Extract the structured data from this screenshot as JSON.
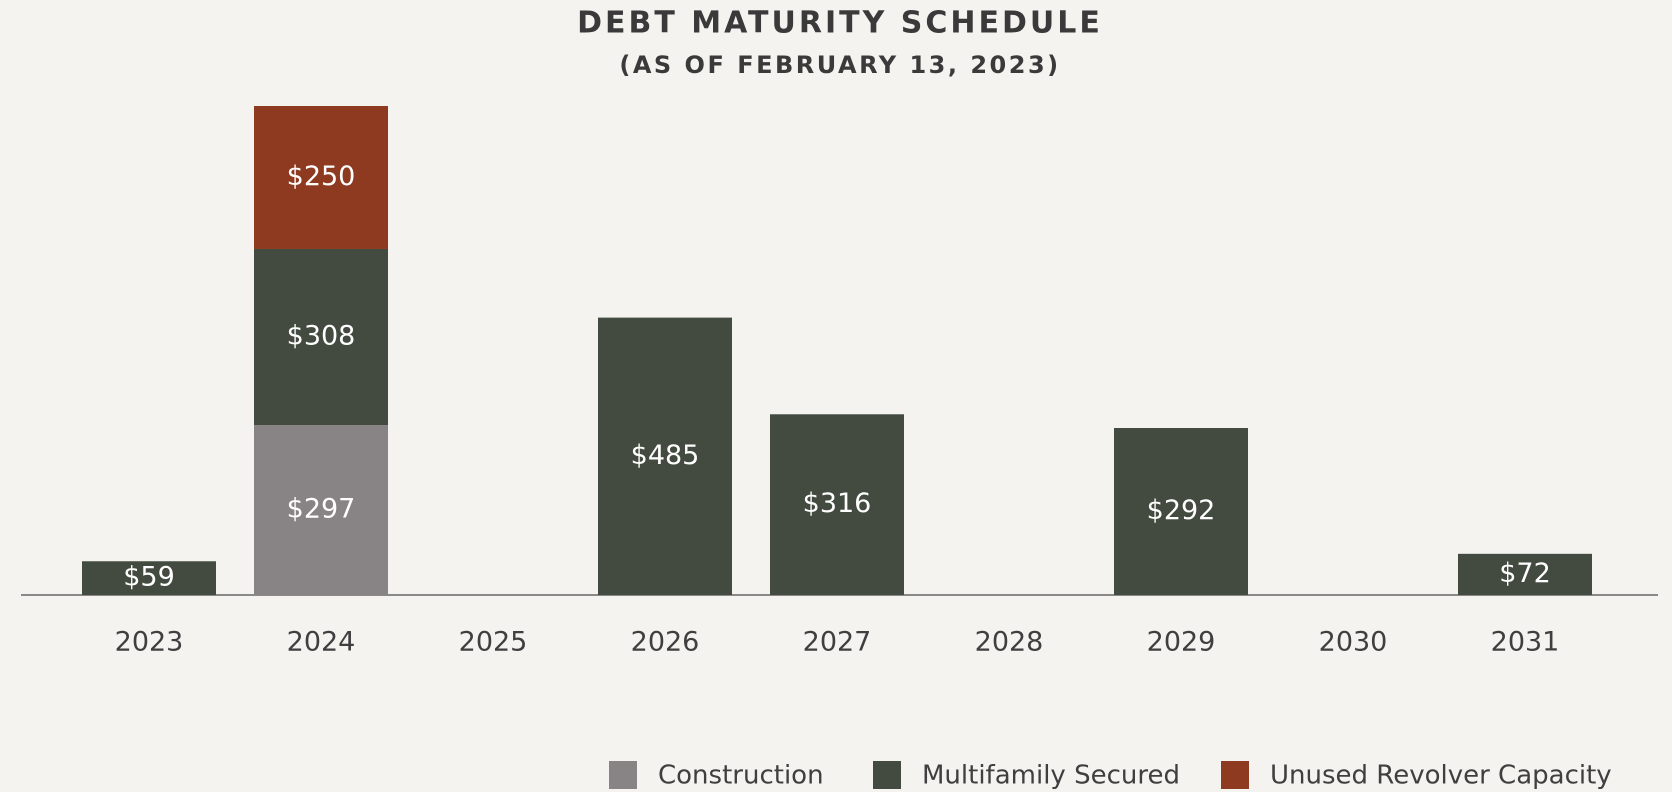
{
  "chart_data": {
    "type": "stacked_bar",
    "title": "DEBT MATURITY SCHEDULE",
    "subtitle": "(AS OF FEBRUARY 13, 2023)",
    "categories": [
      "2023",
      "2024",
      "2025",
      "2026",
      "2027",
      "2028",
      "2029",
      "2030",
      "2031"
    ],
    "series": [
      {
        "name": "Construction",
        "color": "#888384",
        "values": [
          null,
          297,
          null,
          null,
          null,
          null,
          null,
          null,
          null
        ],
        "value_labels": [
          null,
          "$297",
          null,
          null,
          null,
          null,
          null,
          null,
          null
        ]
      },
      {
        "name": "Multifamily Secured",
        "color": "#434a40",
        "values": [
          59,
          308,
          null,
          485,
          316,
          null,
          292,
          null,
          72
        ],
        "value_labels": [
          "$59",
          "$308",
          null,
          "$485",
          "$316",
          null,
          "$292",
          null,
          "$72"
        ]
      },
      {
        "name": "Unused Revolver Capacity",
        "color": "#8e3a20",
        "values": [
          null,
          250,
          null,
          null,
          null,
          null,
          null,
          null,
          null
        ],
        "value_labels": [
          null,
          "$250",
          null,
          null,
          null,
          null,
          null,
          null,
          null
        ]
      }
    ]
  }
}
